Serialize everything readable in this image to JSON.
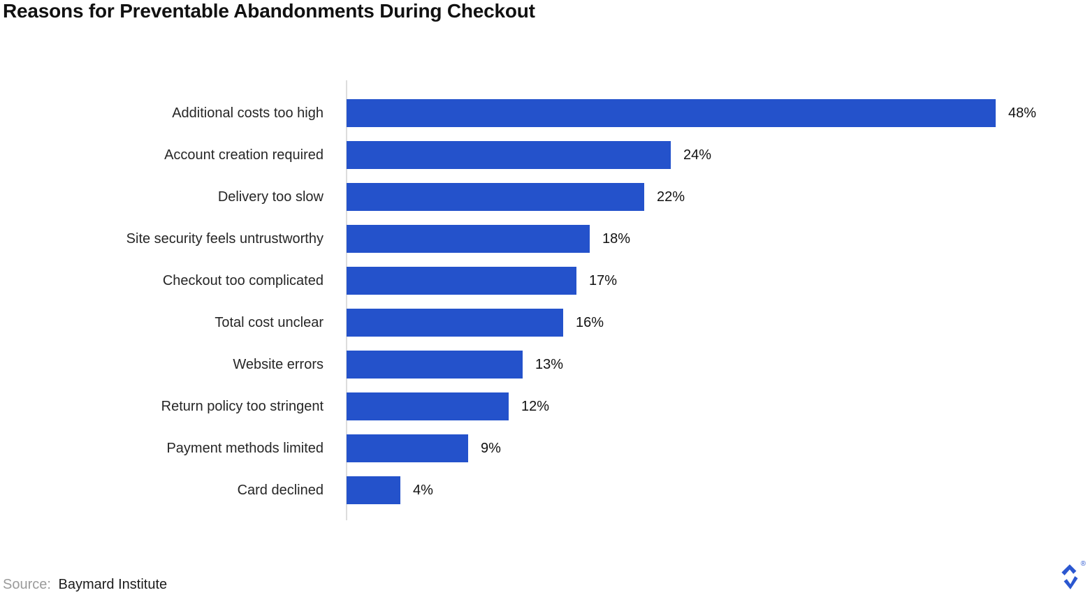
{
  "title": "Reasons for Preventable Abandonments During Checkout",
  "source": {
    "prefix": "Source:",
    "name": "Baymard Institute"
  },
  "logo": {
    "name": "toptal-logo",
    "registered_mark": "®"
  },
  "colors": {
    "bar": "#2452cb",
    "axis": "#dddddd",
    "title": "#111111",
    "category_label": "#262626",
    "value_label": "#111111",
    "source_prefix": "#9b9b9b",
    "source_name": "#1c1c1c",
    "logo": "#2b57d0"
  },
  "chart_data": {
    "type": "bar",
    "orientation": "horizontal",
    "title": "Reasons for Preventable Abandonments During Checkout",
    "xlabel": "",
    "ylabel": "",
    "categories": [
      "Additional costs too high",
      "Account creation required",
      "Delivery too slow",
      "Site security feels untrustworthy",
      "Checkout too complicated",
      "Total cost unclear",
      "Website errors",
      "Return policy too stringent",
      "Payment methods limited",
      "Card declined"
    ],
    "values": [
      48,
      24,
      22,
      18,
      17,
      16,
      13,
      12,
      9,
      4
    ],
    "value_suffix": "%",
    "xlim": [
      0,
      48
    ],
    "grid": false,
    "legend": false,
    "data_labels": "outside-end",
    "source": "Baymard Institute"
  }
}
